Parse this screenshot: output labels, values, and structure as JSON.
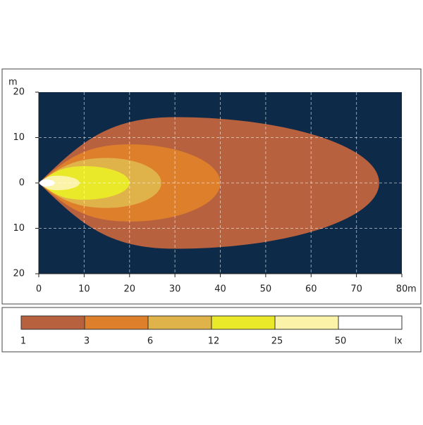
{
  "chart_data": {
    "type": "isolux",
    "x_unit": "m",
    "y_unit": "m",
    "xlim": [
      0,
      80
    ],
    "xticks": [
      0,
      10,
      20,
      30,
      40,
      50,
      60,
      70,
      80
    ],
    "ylim": [
      -20,
      20
    ],
    "yticks": [
      {
        "value": -20,
        "label": "20"
      },
      {
        "value": -10,
        "label": "10"
      },
      0,
      10,
      20
    ],
    "grid": true,
    "background": "#0d2a48",
    "levels": [
      1,
      3,
      6,
      12,
      25,
      50
    ],
    "level_unit": "lx",
    "colors": [
      "#b8613e",
      "#de7f2c",
      "#e0b24a",
      "#e9e92a",
      "#fbf4a8",
      "#ffffff"
    ],
    "contours": [
      {
        "reach": 75,
        "half_width": 14.5,
        "widest_at": 30
      },
      {
        "reach": 40,
        "half_width": 8.5,
        "widest_at": 20
      },
      {
        "reach": 27,
        "half_width": 5.5,
        "widest_at": 15
      },
      {
        "reach": 20,
        "half_width": 3.7,
        "widest_at": 10
      },
      {
        "reach": 9,
        "half_width": 1.6,
        "widest_at": 4
      },
      {
        "reach": 3.5,
        "half_width": 0.8,
        "widest_at": 1.5
      }
    ]
  }
}
